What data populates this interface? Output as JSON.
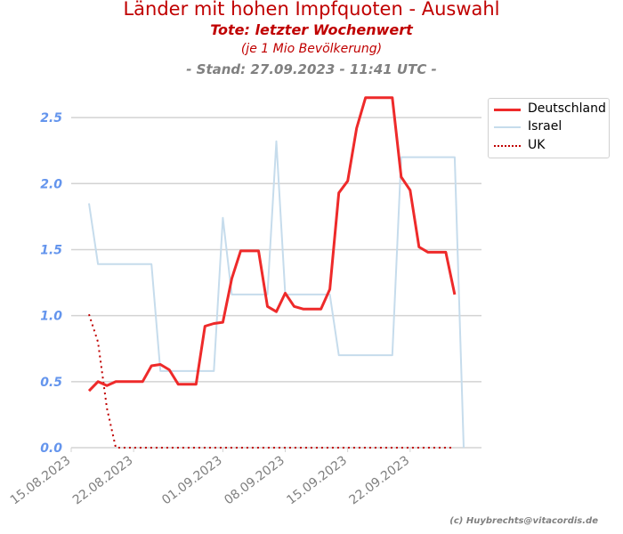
{
  "chart_data": {
    "type": "line",
    "title": "Länder mit hohen Impfquoten - Auswahl",
    "subtitle": "Tote: letzter Wochenwert",
    "unit_note": "(je 1 Mio Bevölkerung)",
    "stand": "- Stand: 27.09.2023 - 11:41 UTC -",
    "credit": "(c) Huybrechts@vitacordis.de",
    "xlabel": "",
    "ylabel": "",
    "x_ticks": [
      "15.08.2023",
      "22.08.2023",
      "01.09.2023",
      "08.09.2023",
      "15.09.2023",
      "22.09.2023"
    ],
    "x_range": [
      "2023-08-15",
      "2023-09-30"
    ],
    "y_ticks": [
      "0.0",
      "0.5",
      "1.0",
      "1.5",
      "2.0",
      "2.5"
    ],
    "ylim": [
      0,
      2.75
    ],
    "grid": "horizontal",
    "legend_position": "top-right-outside",
    "series": [
      {
        "name": "Deutschland",
        "color": "#ee2a2a",
        "style": "solid",
        "x": [
          "2023-08-17",
          "2023-08-18",
          "2023-08-19",
          "2023-08-20",
          "2023-08-21",
          "2023-08-22",
          "2023-08-23",
          "2023-08-24",
          "2023-08-25",
          "2023-08-26",
          "2023-08-27",
          "2023-08-28",
          "2023-08-29",
          "2023-08-30",
          "2023-08-31",
          "2023-09-01",
          "2023-09-02",
          "2023-09-03",
          "2023-09-04",
          "2023-09-05",
          "2023-09-06",
          "2023-09-07",
          "2023-09-08",
          "2023-09-09",
          "2023-09-10",
          "2023-09-11",
          "2023-09-12",
          "2023-09-13",
          "2023-09-14",
          "2023-09-15",
          "2023-09-16",
          "2023-09-17",
          "2023-09-18",
          "2023-09-19",
          "2023-09-20",
          "2023-09-21",
          "2023-09-22",
          "2023-09-23",
          "2023-09-24",
          "2023-09-25",
          "2023-09-26",
          "2023-09-27"
        ],
        "values": [
          0.43,
          0.5,
          0.47,
          0.5,
          0.5,
          0.5,
          0.5,
          0.62,
          0.63,
          0.59,
          0.48,
          0.48,
          0.48,
          0.92,
          0.94,
          0.95,
          1.28,
          1.49,
          1.49,
          1.49,
          1.07,
          1.03,
          1.17,
          1.07,
          1.05,
          1.05,
          1.05,
          1.2,
          1.93,
          2.02,
          2.42,
          2.65,
          2.65,
          2.65,
          2.65,
          2.05,
          1.95,
          1.52,
          1.48,
          1.48,
          1.48,
          1.16
        ]
      },
      {
        "name": "Israel",
        "color": "#c6dcec",
        "style": "solid",
        "x": [
          "2023-08-17",
          "2023-08-18",
          "2023-08-24",
          "2023-08-25",
          "2023-08-31",
          "2023-09-01",
          "2023-09-02",
          "2023-09-06",
          "2023-09-07",
          "2023-09-08",
          "2023-09-13",
          "2023-09-14",
          "2023-09-20",
          "2023-09-21",
          "2023-09-27",
          "2023-09-28"
        ],
        "values": [
          1.85,
          1.39,
          1.39,
          0.58,
          0.58,
          1.74,
          1.16,
          1.16,
          2.32,
          1.16,
          1.16,
          0.7,
          0.7,
          2.2,
          2.2,
          0.0
        ]
      },
      {
        "name": "UK",
        "color": "#c00000",
        "style": "dotted",
        "x": [
          "2023-08-17",
          "2023-08-18",
          "2023-08-19",
          "2023-08-20",
          "2023-08-27",
          "2023-09-03",
          "2023-09-10",
          "2023-09-17",
          "2023-09-24",
          "2023-09-27"
        ],
        "values": [
          1.01,
          0.8,
          0.3,
          0.0,
          0.0,
          0.0,
          0.0,
          0.0,
          0.0,
          0.0
        ]
      }
    ]
  }
}
